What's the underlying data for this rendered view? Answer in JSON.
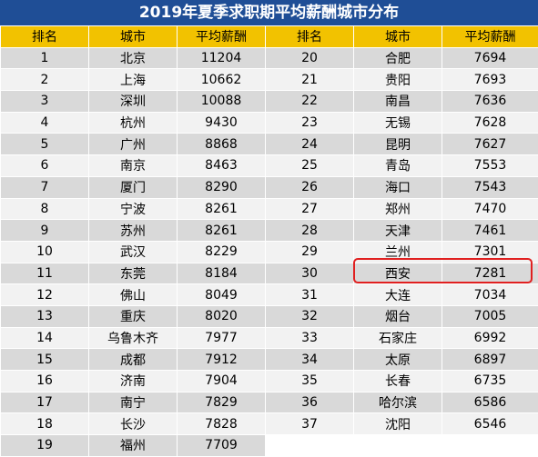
{
  "title": "2019年夏季求职期平均薪酬城市分布",
  "headers": [
    "排名",
    "城市",
    "平均薪酬",
    "排名",
    "城市",
    "平均薪酬"
  ],
  "left_rows": [
    [
      "1",
      "北京",
      "11204"
    ],
    [
      "2",
      "上海",
      "10662"
    ],
    [
      "3",
      "深圳",
      "10088"
    ],
    [
      "4",
      "杭州",
      "9430"
    ],
    [
      "5",
      "广州",
      "8868"
    ],
    [
      "6",
      "南京",
      "8463"
    ],
    [
      "7",
      "厦门",
      "8290"
    ],
    [
      "8",
      "宁波",
      "8261"
    ],
    [
      "9",
      "苏州",
      "8261"
    ],
    [
      "10",
      "武汉",
      "8229"
    ],
    [
      "11",
      "东莞",
      "8184"
    ],
    [
      "12",
      "佛山",
      "8049"
    ],
    [
      "13",
      "重庆",
      "8020"
    ],
    [
      "14",
      "乌鲁木齐",
      "7977"
    ],
    [
      "15",
      "成都",
      "7912"
    ],
    [
      "16",
      "济南",
      "7904"
    ],
    [
      "17",
      "南宁",
      "7829"
    ],
    [
      "18",
      "长沙",
      "7828"
    ],
    [
      "19",
      "福州",
      "7709"
    ]
  ],
  "right_rows": [
    [
      "20",
      "合肥",
      "7694"
    ],
    [
      "21",
      "贵阳",
      "7693"
    ],
    [
      "22",
      "南昌",
      "7636"
    ],
    [
      "23",
      "无锡",
      "7628"
    ],
    [
      "24",
      "昆明",
      "7627"
    ],
    [
      "25",
      "青岛",
      "7553"
    ],
    [
      "26",
      "海口",
      "7543"
    ],
    [
      "27",
      "郑州",
      "7470"
    ],
    [
      "28",
      "天津",
      "7461"
    ],
    [
      "29",
      "兰州",
      "7301"
    ],
    [
      "30",
      "西安",
      "7281"
    ],
    [
      "31",
      "大连",
      "7034"
    ],
    [
      "32",
      "烟台",
      "7005"
    ],
    [
      "33",
      "石家庄",
      "6992"
    ],
    [
      "34",
      "太原",
      "6897"
    ],
    [
      "35",
      "长春",
      "6735"
    ],
    [
      "36",
      "哈尔滨",
      "6586"
    ],
    [
      "37",
      "沈阳",
      "6546"
    ]
  ],
  "highlight_city": "西安",
  "colors": {
    "title_bg": "#1f4e96",
    "header_bg": "#f2c200",
    "row_odd": "#d9d9d9",
    "row_even": "#f2f2f2",
    "highlight": "#e02020"
  }
}
